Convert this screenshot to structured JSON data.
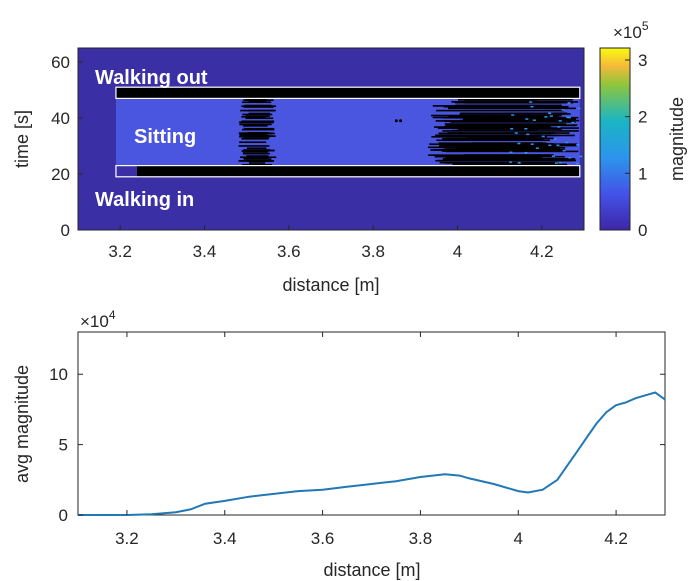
{
  "chart_data": [
    {
      "type": "heatmap",
      "xlabel": "distance [m]",
      "ylabel": "time [s]",
      "xlim": [
        3.1,
        4.3
      ],
      "ylim": [
        0,
        65
      ],
      "xticks": [
        "3.2",
        "3.4",
        "3.6",
        "3.8",
        "4",
        "4.2"
      ],
      "yticks": [
        "0",
        "20",
        "40",
        "60"
      ],
      "colorbar": {
        "label": "magnitude",
        "range": [
          0,
          3
        ],
        "ticks": [
          "0",
          "1",
          "2",
          "3"
        ],
        "multiplier_base": "×10",
        "multiplier_exp": "5"
      },
      "annotations": [
        "Walking out",
        "Sitting",
        "Walking in"
      ],
      "regions": [
        {
          "name": "walking-out-box",
          "x": [
            3.19,
            4.29
          ],
          "y": [
            47,
            51
          ]
        },
        {
          "name": "walking-in-box",
          "x": [
            3.19,
            4.29
          ],
          "y": [
            19,
            23
          ]
        }
      ],
      "background_color": "#3b2fa6",
      "sitting_band_color": "#4a55e0"
    },
    {
      "type": "line",
      "xlabel": "distance [m]",
      "ylabel": "avg magnitude",
      "xlim": [
        3.1,
        4.3
      ],
      "ylim": [
        0,
        13
      ],
      "xticks": [
        "3.2",
        "3.4",
        "3.6",
        "3.8",
        "4",
        "4.2"
      ],
      "yticks": [
        "0",
        "5",
        "10"
      ],
      "multiplier_base": "×10",
      "multiplier_exp": "4",
      "line_color": "#2278b5",
      "x": [
        3.1,
        3.15,
        3.2,
        3.25,
        3.3,
        3.33,
        3.36,
        3.4,
        3.45,
        3.5,
        3.55,
        3.6,
        3.65,
        3.7,
        3.75,
        3.8,
        3.85,
        3.88,
        3.9,
        3.95,
        4.0,
        4.02,
        4.05,
        4.08,
        4.1,
        4.12,
        4.14,
        4.16,
        4.18,
        4.2,
        4.22,
        4.24,
        4.26,
        4.28,
        4.3
      ],
      "y": [
        0.0,
        0.0,
        0.0,
        0.05,
        0.2,
        0.4,
        0.8,
        1.0,
        1.3,
        1.5,
        1.7,
        1.8,
        2.0,
        2.2,
        2.4,
        2.7,
        2.9,
        2.8,
        2.6,
        2.2,
        1.7,
        1.6,
        1.8,
        2.5,
        3.5,
        4.5,
        5.5,
        6.5,
        7.3,
        7.8,
        8.0,
        8.3,
        8.5,
        8.7,
        8.2
      ]
    }
  ]
}
